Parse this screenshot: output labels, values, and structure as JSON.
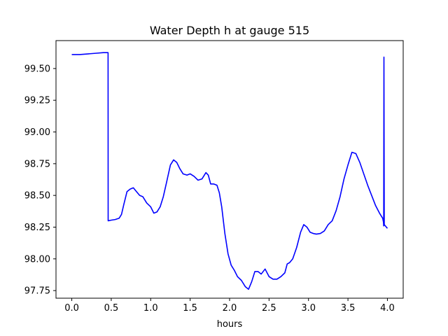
{
  "chart_data": {
    "type": "line",
    "title": "Water Depth h at gauge 515",
    "xlabel": "hours",
    "ylabel": "",
    "xlim": [
      -0.2,
      4.2
    ],
    "ylim": [
      97.69,
      99.72
    ],
    "xticks": [
      0.0,
      0.5,
      1.0,
      1.5,
      2.0,
      2.5,
      3.0,
      3.5,
      4.0
    ],
    "xtick_labels": [
      "0.0",
      "0.5",
      "1.0",
      "1.5",
      "2.0",
      "2.5",
      "3.0",
      "3.5",
      "4.0"
    ],
    "yticks": [
      97.75,
      98.0,
      98.25,
      98.5,
      98.75,
      99.0,
      99.25,
      99.5
    ],
    "ytick_labels": [
      "97.75",
      "98.00",
      "98.25",
      "98.50",
      "98.75",
      "99.00",
      "99.25",
      "99.50"
    ],
    "grid": false,
    "series": [
      {
        "color": "#0000ff",
        "x": [
          0.0,
          0.1,
          0.2,
          0.3,
          0.4,
          0.46,
          0.461,
          0.5,
          0.55,
          0.6,
          0.63,
          0.66,
          0.7,
          0.74,
          0.78,
          0.82,
          0.86,
          0.9,
          0.95,
          1.0,
          1.04,
          1.08,
          1.12,
          1.16,
          1.2,
          1.25,
          1.29,
          1.33,
          1.37,
          1.41,
          1.46,
          1.5,
          1.55,
          1.6,
          1.65,
          1.7,
          1.73,
          1.76,
          1.8,
          1.84,
          1.87,
          1.9,
          1.94,
          1.98,
          2.02,
          2.06,
          2.1,
          2.15,
          2.2,
          2.24,
          2.28,
          2.32,
          2.36,
          2.4,
          2.45,
          2.5,
          2.55,
          2.6,
          2.65,
          2.7,
          2.73,
          2.76,
          2.8,
          2.85,
          2.9,
          2.94,
          2.98,
          3.02,
          3.06,
          3.1,
          3.15,
          3.2,
          3.25,
          3.3,
          3.35,
          3.4,
          3.45,
          3.5,
          3.55,
          3.6,
          3.65,
          3.7,
          3.75,
          3.8,
          3.85,
          3.9,
          3.94,
          3.95,
          3.951,
          3.953,
          3.956,
          3.96,
          4.0
        ],
        "y": [
          99.61,
          99.61,
          99.615,
          99.62,
          99.625,
          99.625,
          98.3,
          98.305,
          98.31,
          98.32,
          98.35,
          98.43,
          98.53,
          98.55,
          98.56,
          98.53,
          98.5,
          98.49,
          98.44,
          98.41,
          98.36,
          98.37,
          98.41,
          98.49,
          98.6,
          98.74,
          98.78,
          98.76,
          98.71,
          98.67,
          98.66,
          98.67,
          98.65,
          98.62,
          98.63,
          98.68,
          98.66,
          98.59,
          98.59,
          98.58,
          98.52,
          98.41,
          98.2,
          98.04,
          97.95,
          97.91,
          97.86,
          97.83,
          97.78,
          97.76,
          97.82,
          97.9,
          97.9,
          97.88,
          97.92,
          97.86,
          97.84,
          97.84,
          97.86,
          97.89,
          97.96,
          97.97,
          98.0,
          98.09,
          98.21,
          98.27,
          98.25,
          98.21,
          98.2,
          98.195,
          98.2,
          98.22,
          98.27,
          98.3,
          98.38,
          98.49,
          98.63,
          98.74,
          98.84,
          98.83,
          98.76,
          98.67,
          98.58,
          98.5,
          98.42,
          98.36,
          98.32,
          98.29,
          98.28,
          98.26,
          99.59,
          98.27,
          98.24
        ]
      }
    ]
  }
}
